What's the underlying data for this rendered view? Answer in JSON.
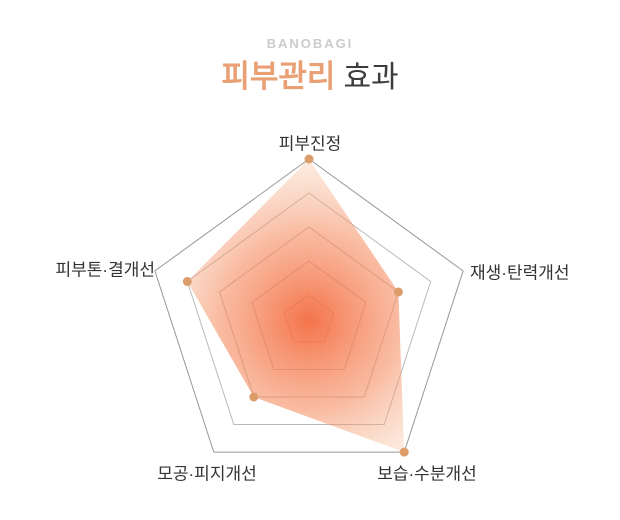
{
  "header": {
    "brand": "BANOBAGI",
    "title_highlight": "피부관리",
    "title_rest": "효과"
  },
  "colors": {
    "background": "#ffffff",
    "brand_gray": "#cccccc",
    "title_highlight": "#e8a074",
    "title_rest": "#3c3c3c",
    "label_text": "#333333",
    "grid_outer": "#979797",
    "grid_inner": "#a9a9a9",
    "dot": "#dd9d6b",
    "gradient_center": "#f3673a",
    "gradient_mid": "#f58a5e",
    "gradient_edge": "#f6c29e"
  },
  "chart_data": {
    "type": "radar",
    "title": "피부관리 효과",
    "categories": [
      "피부진정",
      "재생·탄력개선",
      "보습·수분개선",
      "모공·피지개선",
      "피부톤·결개선"
    ],
    "values_level": [
      5,
      3,
      5,
      3,
      4
    ],
    "max_level": 5,
    "values_fraction": [
      1.0,
      0.58,
      1.0,
      0.58,
      0.79
    ],
    "ring_fractions": [
      0.16,
      0.37,
      0.58,
      0.79,
      1.0
    ],
    "grid_shape": "pentagon-rings",
    "legend": "none",
    "fill_style": "radial-gradient-orange",
    "vertex_markers": "orange-dots"
  }
}
